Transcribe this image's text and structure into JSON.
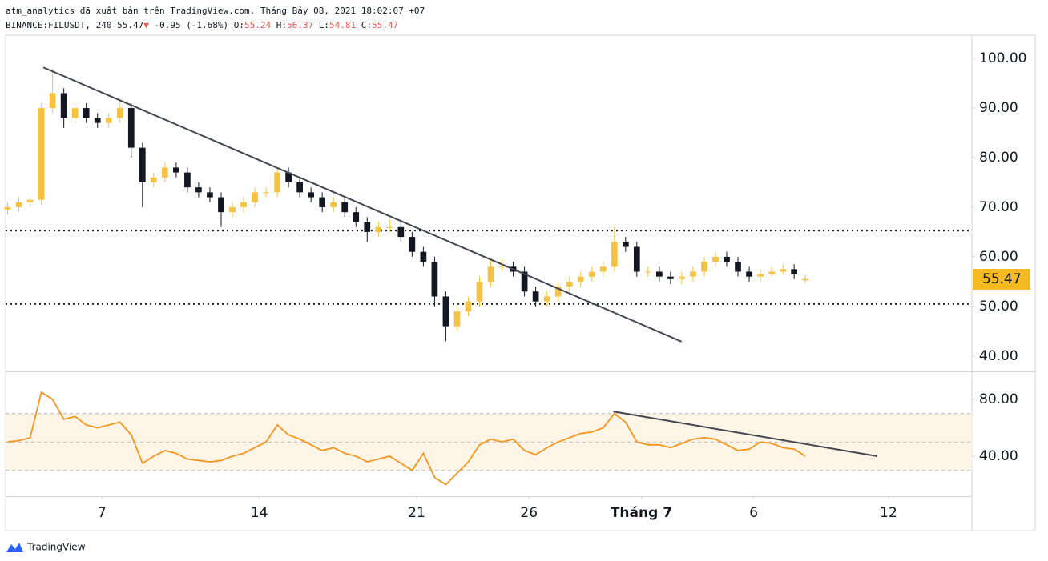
{
  "header": {
    "line1": "atm_analytics đã xuất bản trên TradingView.com, Tháng Bảy 08, 2021 18:02:07 +07",
    "symbol": "BINANCE:FILUSDT, 240",
    "last": 55.47,
    "arrow": "▼",
    "change": "-0.95 (-1.68%)",
    "ohlc": [
      {
        "label": "O:",
        "value": 55.24
      },
      {
        "label": "H:",
        "value": 56.37
      },
      {
        "label": "L:",
        "value": 54.81
      },
      {
        "label": "C:",
        "value": 55.47
      }
    ]
  },
  "footer": {
    "brand": "TradingView"
  },
  "chart_data": {
    "type": "candlestick",
    "x": [
      2.8,
      3.3,
      3.8,
      4.3,
      4.8,
      5.3,
      5.8,
      6.3,
      6.8,
      7.3,
      7.8,
      8.3,
      8.8,
      9.3,
      9.8,
      10.3,
      10.8,
      11.3,
      11.8,
      12.3,
      12.8,
      13.3,
      13.8,
      14.3,
      14.8,
      15.3,
      15.8,
      16.3,
      16.8,
      17.3,
      17.8,
      18.3,
      18.8,
      19.3,
      19.8,
      20.3,
      20.8,
      21.3,
      21.8,
      22.3,
      22.8,
      23.3,
      23.8,
      24.3,
      24.8,
      25.3,
      25.8,
      26.3,
      26.8,
      27.3,
      27.8,
      28.3,
      28.8,
      29.3,
      29.8,
      30.3,
      30.8,
      31.3,
      31.8,
      32.3,
      32.8,
      33.3,
      33.8,
      34.3,
      34.8,
      35.3,
      35.8,
      36.3,
      36.8,
      37.3,
      37.8,
      38.3
    ],
    "open": [
      69.5,
      70,
      71,
      71.5,
      90,
      93,
      88,
      90,
      88,
      87,
      88,
      90,
      82,
      75,
      76,
      78,
      77,
      74,
      73,
      72,
      69,
      70,
      71,
      73,
      73,
      77,
      75,
      73,
      72,
      70,
      71,
      69,
      67,
      65,
      66,
      66,
      64,
      61,
      59,
      52,
      46,
      49,
      51,
      55,
      58,
      58,
      57,
      53,
      51,
      52,
      54,
      55,
      56,
      57,
      58,
      63,
      62,
      57,
      57,
      56,
      55.5,
      56,
      57,
      59,
      60,
      59,
      57,
      56,
      56.5,
      57,
      57.5,
      55.24
    ],
    "high": [
      71,
      72,
      72.5,
      91,
      98,
      94,
      91,
      91,
      89,
      89,
      92,
      91,
      83,
      77,
      79,
      79,
      78,
      75,
      74,
      73,
      71,
      72,
      74,
      74,
      78,
      78,
      76,
      74,
      73,
      72,
      72,
      70,
      68,
      67,
      67.5,
      67,
      65,
      62,
      60,
      53,
      50,
      52,
      56,
      59.5,
      59.5,
      59,
      58,
      54,
      53,
      55,
      56,
      57,
      58,
      59,
      66,
      64,
      63,
      58,
      58,
      57,
      57,
      58,
      60,
      61,
      61,
      60,
      58,
      57.5,
      58,
      58.5,
      58.5,
      56.37
    ],
    "low": [
      68.5,
      69,
      70,
      70.5,
      89,
      86,
      87,
      87,
      86,
      86,
      87,
      80,
      70,
      74,
      75,
      76,
      73,
      72,
      71,
      66,
      68,
      69,
      70,
      72,
      72,
      74,
      72,
      71,
      69,
      69,
      68,
      66,
      63,
      64,
      65,
      63,
      60,
      58,
      50,
      43,
      45,
      48,
      50,
      54,
      57,
      56,
      52,
      50,
      50,
      51,
      53,
      54,
      55,
      56,
      57,
      61,
      56,
      56,
      55,
      54.5,
      54.5,
      55,
      56,
      58,
      58,
      56,
      55,
      55,
      56,
      56.5,
      55.5,
      54.81
    ],
    "close": [
      70,
      71,
      71.5,
      90,
      93,
      88,
      90,
      88,
      87,
      88,
      90,
      82,
      75,
      76,
      78,
      77,
      74,
      73,
      72,
      69,
      70,
      71,
      73,
      73,
      77,
      75,
      73,
      72,
      70,
      71,
      69,
      67,
      65,
      66,
      66,
      64,
      61,
      59,
      52,
      46,
      49,
      51,
      55,
      58,
      58,
      57,
      53,
      51,
      52,
      54,
      55,
      56,
      57,
      58,
      63,
      62,
      57,
      57,
      56,
      55.5,
      56,
      57,
      59,
      60,
      59,
      57,
      56,
      56.5,
      57,
      57.5,
      56.5,
      55.47
    ],
    "up_color": "#f5c242",
    "down_color": "#131722",
    "xlim": [
      2.71,
      45.71
    ],
    "xticks": [
      7,
      14,
      21,
      26,
      {
        "value": 31,
        "label": "Tháng 7"
      },
      {
        "value": 36,
        "label": "6"
      },
      {
        "value": 42,
        "label": "12"
      }
    ],
    "ylim": [
      36.9,
      104.7
    ],
    "yticks": [
      {
        "value": 40,
        "label": "40.00"
      },
      {
        "value": 50,
        "label": "50.00"
      },
      {
        "value": 60,
        "label": "60.00"
      },
      {
        "value": 70,
        "label": "70.00"
      },
      {
        "value": 80,
        "label": "80.00"
      },
      {
        "value": 90,
        "label": "90.00"
      },
      {
        "value": 100,
        "label": "100.00"
      }
    ],
    "levels": [
      65.3,
      50.5
    ],
    "trendline": {
      "x": [
        4.39,
        32.79
      ],
      "y": [
        98.2,
        42.9
      ],
      "color": "#434651"
    },
    "last_price": 55.47,
    "last_color": "#f5b921",
    "rsi": {
      "values": [
        50,
        51,
        53,
        85,
        80,
        66,
        68,
        62,
        60,
        62,
        64,
        55,
        35,
        40,
        44,
        42,
        38,
        37,
        36,
        37,
        40,
        42,
        46,
        50,
        62,
        55,
        52,
        48,
        44,
        46,
        42,
        40,
        36,
        38,
        40,
        35,
        30,
        42,
        25,
        20,
        28,
        36,
        48,
        52,
        50,
        52,
        44,
        41,
        46,
        50,
        53,
        56,
        57,
        60,
        70,
        64,
        50,
        48,
        48,
        46,
        49,
        52,
        53,
        52,
        48,
        44,
        45,
        50,
        49,
        46,
        45,
        40
      ],
      "color": "#f7941d",
      "ylim": [
        11.8,
        99.2
      ],
      "yticks": [
        {
          "value": 40,
          "label": "40.00"
        },
        {
          "value": 80,
          "label": "80.00"
        }
      ],
      "band": [
        30,
        70
      ],
      "midline": 50,
      "band_color": "#fff5e6",
      "trendline": {
        "x": [
          29.75,
          41.5
        ],
        "y": [
          71.5,
          40
        ],
        "color": "#434651"
      }
    }
  }
}
